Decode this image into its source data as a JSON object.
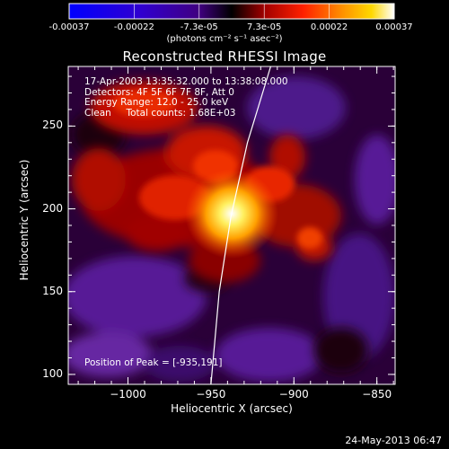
{
  "colorbar": {
    "tick_labels": [
      "-0.00037",
      "-0.00022",
      "-7.3e-05",
      "7.3e-05",
      "0.00022",
      "0.00037"
    ],
    "units_label": "(photons cm⁻² s⁻¹ asec⁻²)",
    "range": [
      -0.00037,
      0.00037
    ],
    "colormap": [
      "#0000ff",
      "#5000a0",
      "#000000",
      "#8b0000",
      "#ff2000",
      "#ff8000",
      "#ffd000",
      "#ffffff"
    ]
  },
  "chart_data": {
    "type": "heatmap",
    "title": "Reconstructed RHESSI Image",
    "xlabel": "Heliocentric X (arcsec)",
    "ylabel": "Heliocentric Y (arcsec)",
    "xlim": [
      -1036,
      -839
    ],
    "ylim": [
      94,
      286
    ],
    "x_ticks": [
      -1000,
      -950,
      -900,
      -850
    ],
    "x_tick_labels": [
      "−1000",
      "−950",
      "−900",
      "−850"
    ],
    "y_ticks": [
      100,
      150,
      200,
      250
    ],
    "y_tick_labels": [
      "100",
      "150",
      "200",
      "250"
    ],
    "annotations": [
      "17-Apr-2003 13:35:32.000 to 13:38:08.000",
      "Detectors: 4F 5F 6F 7F 8F, Att 0",
      "Energy Range: 12.0 - 25.0 keV",
      "Clean     Total counts: 1.68E+03"
    ],
    "peak_label": "Position of Peak = [-935,191]",
    "peak": {
      "x": -935,
      "y": 191
    },
    "limb_points": [
      [
        -914,
        286
      ],
      [
        -928,
        240
      ],
      [
        -938,
        195
      ],
      [
        -945,
        150
      ],
      [
        -950,
        94
      ]
    ]
  },
  "footer": "24-May-2013 06:47"
}
